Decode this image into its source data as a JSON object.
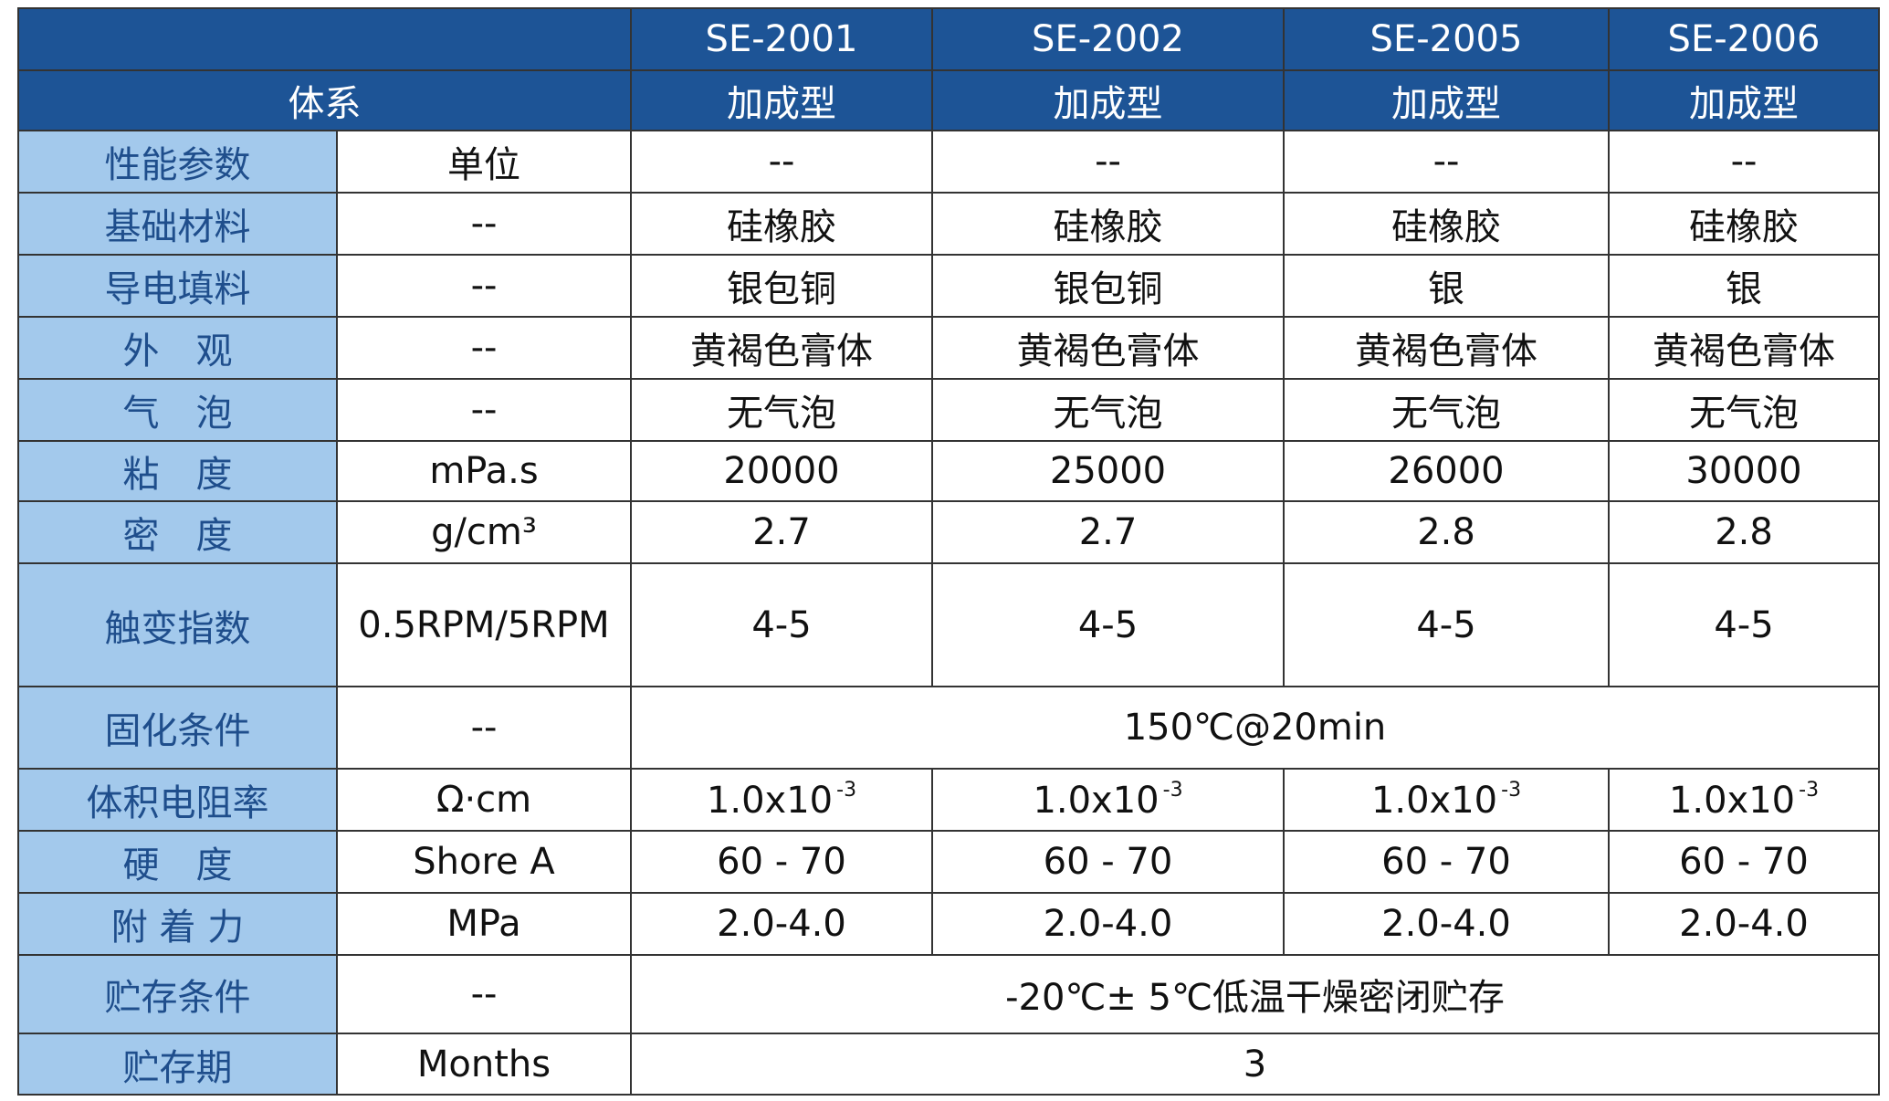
{
  "header": {
    "models": [
      "SE-2001",
      "SE-2002",
      "SE-2005",
      "SE-2006"
    ],
    "system_label": "体系",
    "types": [
      "加成型",
      "加成型",
      "加成型",
      "加成型"
    ]
  },
  "rows": [
    {
      "label": "性能参数",
      "unit": "单位",
      "values": [
        "--",
        "--",
        "--",
        "--"
      ]
    },
    {
      "label": "基础材料",
      "unit": "--",
      "values": [
        "硅橡胶",
        "硅橡胶",
        "硅橡胶",
        "硅橡胶"
      ]
    },
    {
      "label": "导电填料",
      "unit": "--",
      "values": [
        "银包铜",
        "银包铜",
        "银",
        "银"
      ]
    },
    {
      "label": "外　观",
      "unit": "--",
      "values": [
        "黄褐色膏体",
        "黄褐色膏体",
        "黄褐色膏体",
        "黄褐色膏体"
      ]
    },
    {
      "label": "气　泡",
      "unit": "--",
      "values": [
        "无气泡",
        "无气泡",
        "无气泡",
        "无气泡"
      ]
    },
    {
      "label": "粘　度",
      "unit": "mPa.s",
      "values": [
        "20000",
        "25000",
        "26000",
        "30000"
      ]
    },
    {
      "label": "密　度",
      "unit": "g/cm³",
      "values": [
        "2.7",
        "2.7",
        "2.8",
        "2.8"
      ]
    },
    {
      "label": "触变指数",
      "unit": "0.5RPM/5RPM",
      "values": [
        "4-5",
        "4-5",
        "4-5",
        "4-5"
      ]
    },
    {
      "label": "固化条件",
      "unit": "--",
      "values": [
        "150℃@20min"
      ]
    },
    {
      "label": "体积电阻率",
      "unit": "Ω·cm",
      "values": [
        {
          "base": "1.0x10",
          "exp": "-3"
        },
        {
          "base": "1.0x10",
          "exp": "-3"
        },
        {
          "base": "1.0x10",
          "exp": "-3"
        },
        {
          "base": "1.0x10",
          "exp": "-3"
        }
      ]
    },
    {
      "label": "硬　度",
      "unit": "Shore A",
      "values": [
        "60 - 70",
        "60 - 70",
        "60 - 70",
        "60 - 70"
      ]
    },
    {
      "label": "附 着 力",
      "unit": "MPa",
      "values": [
        "2.0-4.0",
        "2.0-4.0",
        "2.0-4.0",
        "2.0-4.0"
      ]
    },
    {
      "label": "贮存条件",
      "unit": "--",
      "values": [
        "-20℃± 5℃低温干燥密闭贮存"
      ]
    },
    {
      "label": "贮存期",
      "unit": "Months",
      "values": [
        "3"
      ]
    }
  ]
}
